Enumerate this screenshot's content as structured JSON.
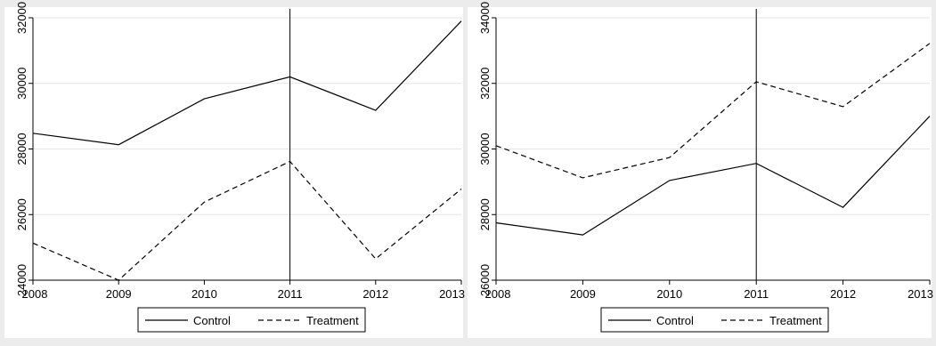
{
  "figure": {
    "background": "#ececec",
    "plot_background": "#ffffff",
    "line_color": "#000000",
    "grid_color": "#e6e6e6"
  },
  "chart_data": [
    {
      "type": "line",
      "title": "",
      "xlabel": "",
      "ylabel": "",
      "x": [
        2008,
        2009,
        2010,
        2011,
        2012,
        2013
      ],
      "xlim": [
        2008,
        2013
      ],
      "ylim": [
        24000,
        32000
      ],
      "yticks": [
        24000,
        26000,
        28000,
        30000,
        32000
      ],
      "xticks": [
        2008,
        2009,
        2010,
        2011,
        2012,
        2013
      ],
      "ytick_labels_rotated": true,
      "grid": true,
      "reference_line_x": 2011,
      "series": [
        {
          "name": "Control",
          "style": "solid",
          "values": [
            28480,
            28130,
            29530,
            30200,
            29180,
            31900
          ]
        },
        {
          "name": "Treatment",
          "style": "dashed",
          "values": [
            25130,
            24000,
            26380,
            27620,
            24650,
            26780
          ]
        }
      ],
      "legend": {
        "placement": "bottom",
        "entries": [
          "Control",
          "Treatment"
        ]
      }
    },
    {
      "type": "line",
      "title": "",
      "xlabel": "",
      "ylabel": "",
      "x": [
        2008,
        2009,
        2010,
        2011,
        2012,
        2013
      ],
      "xlim": [
        2008,
        2013
      ],
      "ylim": [
        26000,
        34000
      ],
      "yticks": [
        26000,
        28000,
        30000,
        32000,
        34000
      ],
      "xticks": [
        2008,
        2009,
        2010,
        2011,
        2012,
        2013
      ],
      "ytick_labels_rotated": true,
      "grid": true,
      "reference_line_x": 2011,
      "series": [
        {
          "name": "Control",
          "style": "solid",
          "values": [
            27750,
            27380,
            29040,
            29560,
            28220,
            31000
          ]
        },
        {
          "name": "Treatment",
          "style": "dashed",
          "values": [
            30100,
            29120,
            29740,
            32050,
            31290,
            33220
          ]
        }
      ],
      "legend": {
        "placement": "bottom",
        "entries": [
          "Control",
          "Treatment"
        ]
      }
    }
  ]
}
